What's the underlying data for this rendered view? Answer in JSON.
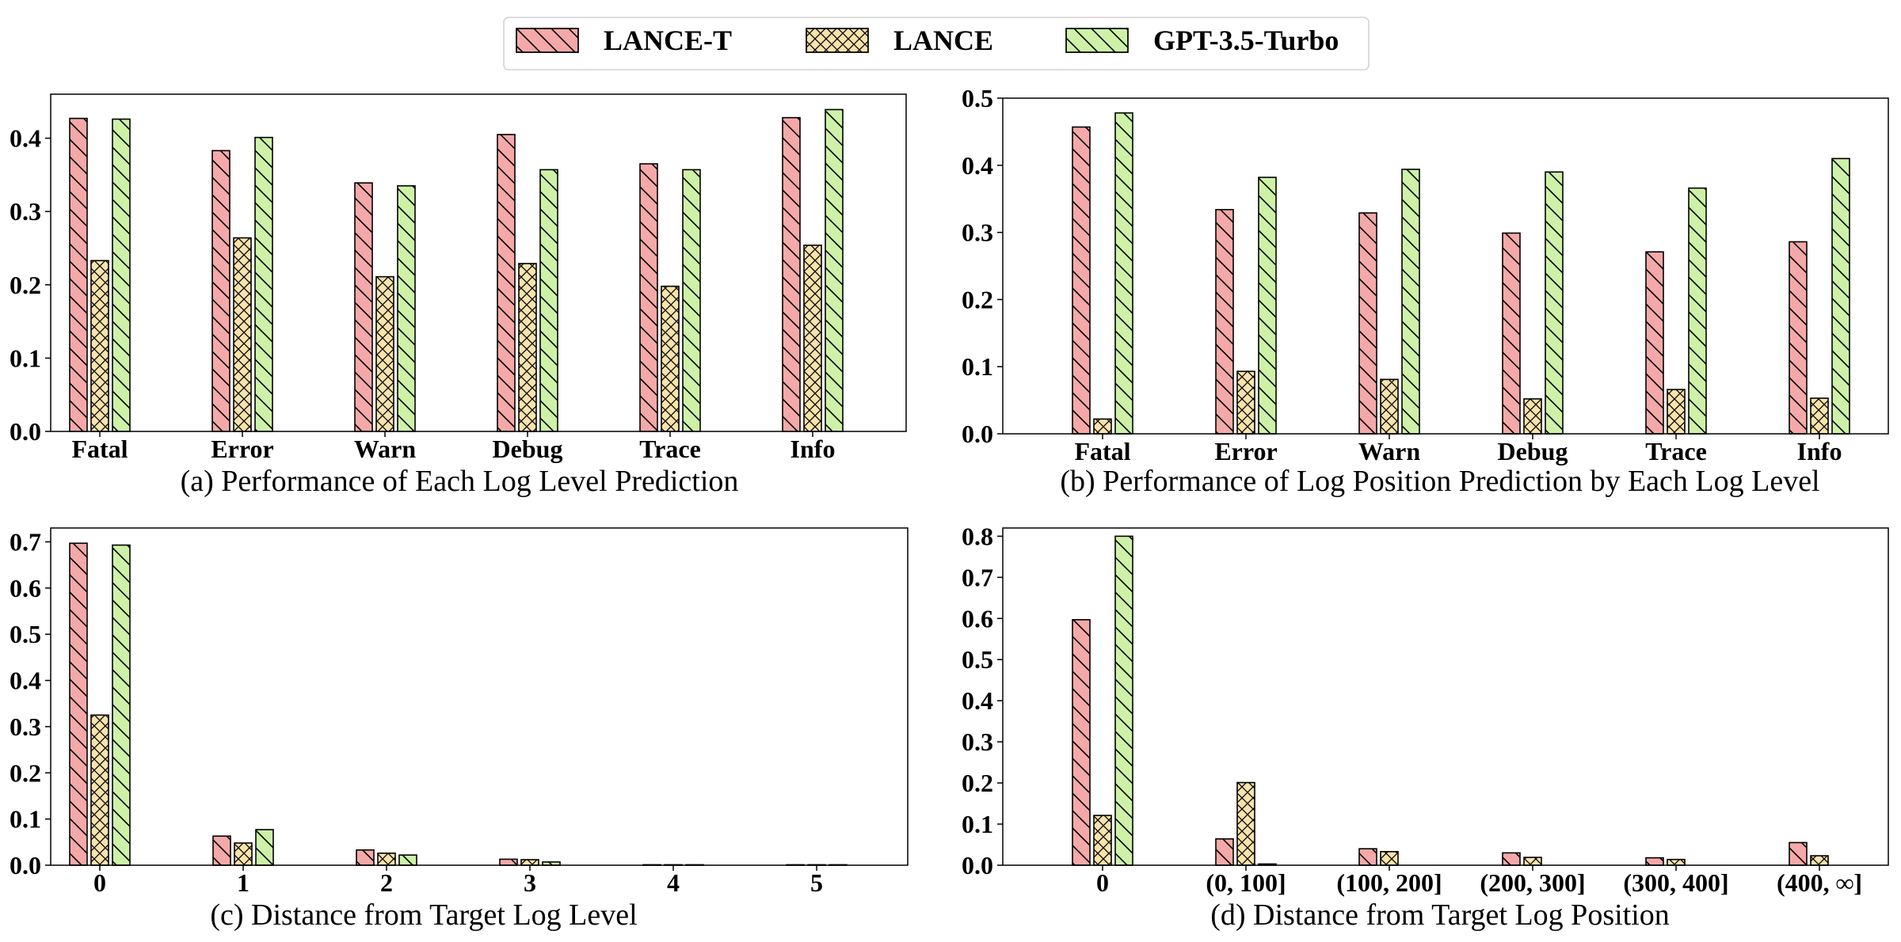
{
  "legend": {
    "items": [
      {
        "name": "LANCE-T",
        "color": "#f4a9a8",
        "pattern": "diag"
      },
      {
        "name": "LANCE",
        "color": "#f8e3ab",
        "pattern": "cross"
      },
      {
        "name": "GPT-3.5-Turbo",
        "color": "#cdf2a7",
        "pattern": "diag"
      }
    ]
  },
  "chart_data": [
    {
      "type": "bar",
      "caption": "(a) Performance of Each Log Level Prediction",
      "categories": [
        "Fatal",
        "Error",
        "Warn",
        "Debug",
        "Trace",
        "Info"
      ],
      "series": [
        {
          "name": "LANCE-T",
          "values": [
            0.427,
            0.383,
            0.339,
            0.405,
            0.365,
            0.428
          ]
        },
        {
          "name": "LANCE",
          "values": [
            0.233,
            0.264,
            0.211,
            0.229,
            0.198,
            0.254
          ]
        },
        {
          "name": "GPT-3.5-Turbo",
          "values": [
            0.426,
            0.401,
            0.335,
            0.357,
            0.357,
            0.439
          ]
        }
      ],
      "ylim": [
        0,
        0.46
      ],
      "yticks": [
        "0.0",
        "0.1",
        "0.2",
        "0.3",
        "0.4"
      ],
      "ytick_values": [
        0,
        0.1,
        0.2,
        0.3,
        0.4
      ],
      "grid": false
    },
    {
      "type": "bar",
      "caption": "(b) Performance of Log Position Prediction by Each Log Level",
      "categories": [
        "Fatal",
        "Error",
        "Warn",
        "Debug",
        "Trace",
        "Info"
      ],
      "series": [
        {
          "name": "LANCE-T",
          "values": [
            0.457,
            0.334,
            0.329,
            0.299,
            0.271,
            0.286
          ]
        },
        {
          "name": "LANCE",
          "values": [
            0.022,
            0.093,
            0.081,
            0.052,
            0.066,
            0.053
          ]
        },
        {
          "name": "GPT-3.5-Turbo",
          "values": [
            0.478,
            0.382,
            0.394,
            0.39,
            0.366,
            0.41
          ]
        }
      ],
      "ylim": [
        0,
        0.5
      ],
      "yticks": [
        "0.0",
        "0.1",
        "0.2",
        "0.3",
        "0.4",
        "0.5"
      ],
      "ytick_values": [
        0,
        0.1,
        0.2,
        0.3,
        0.4,
        0.5
      ],
      "grid": false
    },
    {
      "type": "bar",
      "caption": "(c) Distance from Target Log Level",
      "categories": [
        "0",
        "1",
        "2",
        "3",
        "4",
        "5"
      ],
      "series": [
        {
          "name": "LANCE-T",
          "values": [
            0.697,
            0.063,
            0.033,
            0.013,
            0.001,
            0.001
          ]
        },
        {
          "name": "LANCE",
          "values": [
            0.325,
            0.048,
            0.026,
            0.012,
            0.001,
            0.001
          ]
        },
        {
          "name": "GPT-3.5-Turbo",
          "values": [
            0.693,
            0.077,
            0.022,
            0.007,
            0.001,
            0.001
          ]
        }
      ],
      "ylim": [
        0,
        0.73
      ],
      "yticks": [
        "0.0",
        "0.1",
        "0.2",
        "0.3",
        "0.4",
        "0.5",
        "0.6",
        "0.7"
      ],
      "ytick_values": [
        0,
        0.1,
        0.2,
        0.3,
        0.4,
        0.5,
        0.6,
        0.7
      ],
      "grid": false
    },
    {
      "type": "bar",
      "caption": "(d) Distance from Target Log Position",
      "categories": [
        "0",
        "(0, 100]",
        "(100, 200]",
        "(200, 300]",
        "(300, 400]",
        "(400, ∞]"
      ],
      "series": [
        {
          "name": "LANCE-T",
          "values": [
            0.597,
            0.064,
            0.04,
            0.03,
            0.018,
            0.055
          ]
        },
        {
          "name": "LANCE",
          "values": [
            0.121,
            0.201,
            0.033,
            0.019,
            0.014,
            0.023
          ]
        },
        {
          "name": "GPT-3.5-Turbo",
          "values": [
            0.8,
            0.003,
            0.0,
            0.0,
            0.0,
            0.0
          ]
        }
      ],
      "ylim": [
        0,
        0.82
      ],
      "yticks": [
        "0.0",
        "0.1",
        "0.2",
        "0.3",
        "0.4",
        "0.5",
        "0.6",
        "0.7",
        "0.8"
      ],
      "ytick_values": [
        0,
        0.1,
        0.2,
        0.3,
        0.4,
        0.5,
        0.6,
        0.7,
        0.8
      ],
      "grid": false
    }
  ]
}
